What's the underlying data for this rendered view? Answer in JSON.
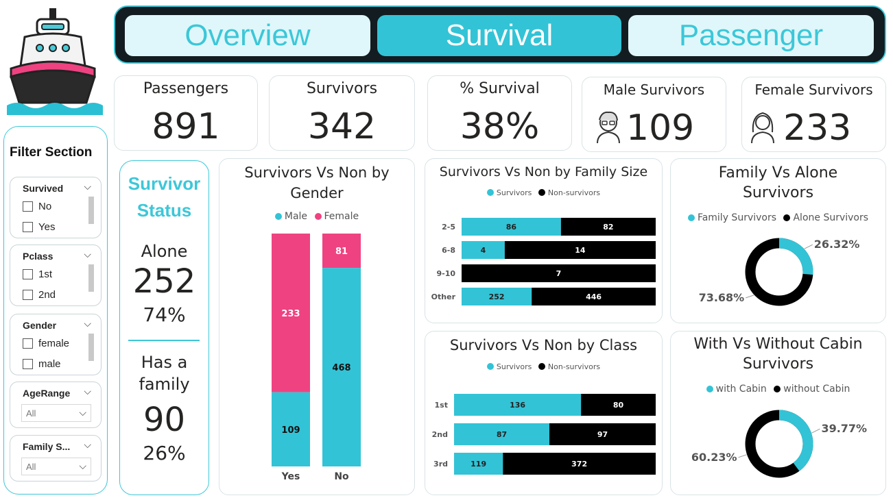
{
  "nav": {
    "tabs": [
      {
        "label": "Overview",
        "active": false
      },
      {
        "label": "Survival",
        "active": true
      },
      {
        "label": "Passenger",
        "active": false
      }
    ]
  },
  "filters": {
    "title": "Filter Section",
    "survived": {
      "title": "Survived",
      "options": [
        "No",
        "Yes"
      ]
    },
    "pclass": {
      "title": "Pclass",
      "options": [
        "1st",
        "2nd"
      ]
    },
    "gender": {
      "title": "Gender",
      "options": [
        "female",
        "male"
      ]
    },
    "agerange": {
      "title": "AgeRange",
      "value": "All"
    },
    "family": {
      "title": "Family S...",
      "value": "All"
    }
  },
  "kpis": {
    "passengers": {
      "label": "Passengers",
      "value": "891"
    },
    "survivors": {
      "label": "Survivors",
      "value": "342"
    },
    "pct_survival": {
      "label": "% Survival",
      "value": "38%"
    },
    "male_survivors": {
      "label": "Male Survivors",
      "value": "109"
    },
    "female_survivors": {
      "label": "Female Survivors",
      "value": "233"
    }
  },
  "survivor_status": {
    "title_line1": "Survivor",
    "title_line2": "Status",
    "alone_label": "Alone",
    "alone_value": "252",
    "alone_pct": "74%",
    "family_label_line1": "Has a",
    "family_label_line2": "family",
    "family_value": "90",
    "family_pct": "26%"
  },
  "colors": {
    "accent": "#33c3d6",
    "female": "#ef4281",
    "dark": "#000000",
    "nav_bg": "#131c21"
  },
  "chart_data": [
    {
      "type": "bar",
      "title_line1": "Survivors Vs Non by",
      "title_line2": "Gender",
      "categories": [
        "Yes",
        "No"
      ],
      "series": [
        {
          "name": "Male",
          "values": [
            109,
            468
          ]
        },
        {
          "name": "Female",
          "values": [
            233,
            81
          ]
        }
      ],
      "stacking": "percent"
    },
    {
      "type": "bar",
      "title": "Survivors Vs Non by Family Size",
      "categories": [
        "2-5",
        "6-8",
        "9-10",
        "Other"
      ],
      "series": [
        {
          "name": "Survivors",
          "values": [
            86,
            4,
            0,
            252
          ]
        },
        {
          "name": "Non-survivors",
          "values": [
            82,
            14,
            7,
            446
          ]
        }
      ],
      "orientation": "horizontal",
      "stacking": "percent"
    },
    {
      "type": "bar",
      "title": "Survivors Vs Non by Class",
      "categories": [
        "1st",
        "2nd",
        "3rd"
      ],
      "series": [
        {
          "name": "Survivors",
          "values": [
            136,
            87,
            119
          ]
        },
        {
          "name": "Non-survivors",
          "values": [
            80,
            97,
            372
          ]
        }
      ],
      "orientation": "horizontal",
      "stacking": "percent"
    },
    {
      "type": "pie",
      "title_line1": "Family Vs Alone",
      "title_line2": "Survivors",
      "labels": [
        "Family Survivors",
        "Alone Survivors"
      ],
      "values": [
        26.32,
        73.68
      ],
      "value_labels": [
        "26.32%",
        "73.68%"
      ]
    },
    {
      "type": "pie",
      "title_line1": "With Vs Without Cabin",
      "title_line2": "Survivors",
      "labels": [
        "with Cabin",
        "without Cabin"
      ],
      "values": [
        39.77,
        60.23
      ],
      "value_labels": [
        "39.77%",
        "60.23%"
      ]
    }
  ]
}
